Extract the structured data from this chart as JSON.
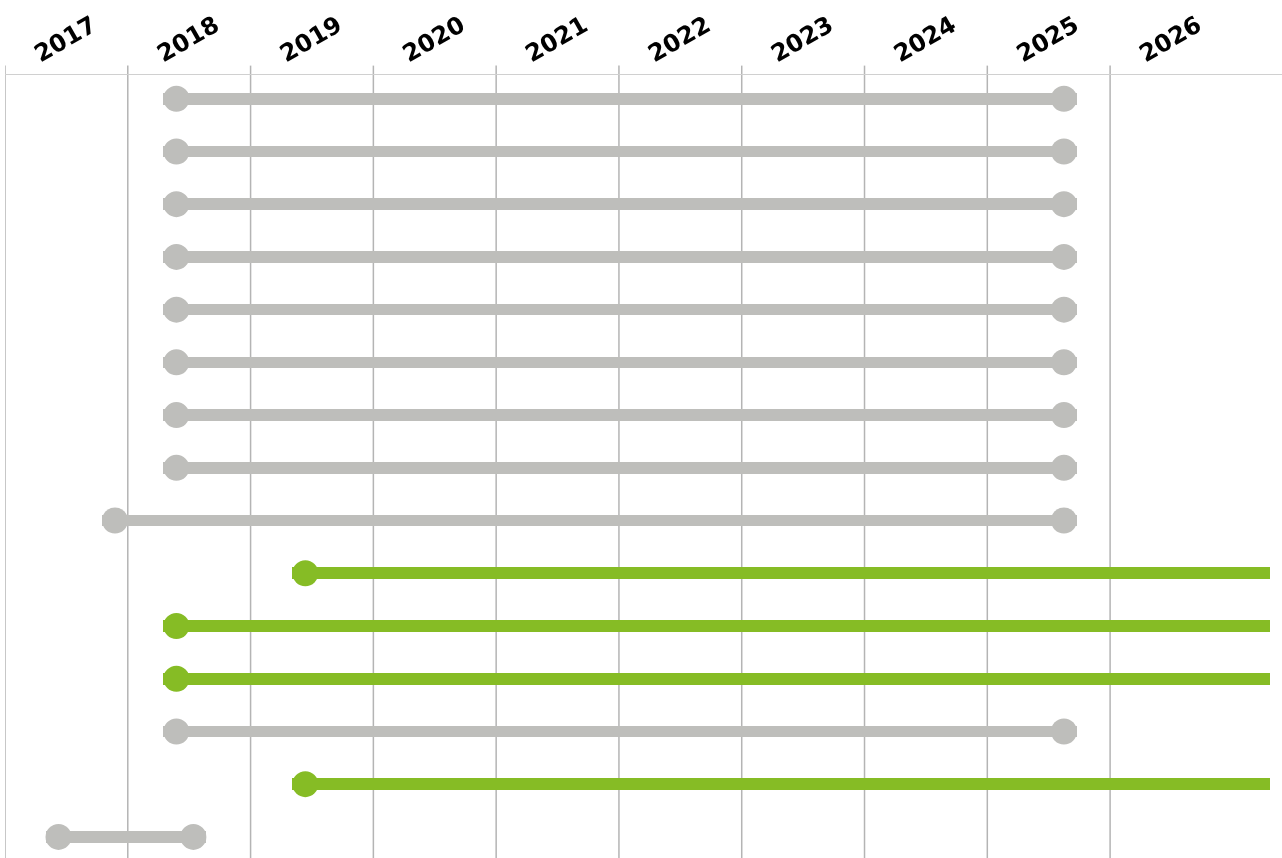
{
  "chart_data": {
    "type": "bar",
    "orientation": "horizontal",
    "categories": [
      null,
      null,
      null,
      null,
      null,
      null,
      null,
      null,
      null,
      null,
      null,
      null,
      null,
      null,
      null
    ],
    "base": [
      2018.29,
      2018.29,
      2018.29,
      2018.29,
      2018.29,
      2018.29,
      2018.29,
      2018.29,
      2017.79,
      2019.34,
      2018.29,
      2018.29,
      2018.29,
      2019.34,
      2017.33
    ],
    "values": [
      7.44,
      7.44,
      7.44,
      7.44,
      7.44,
      7.44,
      7.44,
      7.44,
      7.94,
      7.96,
      9.01,
      9.01,
      7.44,
      7.96,
      1.31
    ],
    "colors": [
      "#bebebb",
      "#bebebb",
      "#bebebb",
      "#bebebb",
      "#bebebb",
      "#bebebb",
      "#bebebb",
      "#bebebb",
      "#bebebb",
      "#86bc25",
      "#86bc25",
      "#86bc25",
      "#bebebb",
      "#86bc25",
      "#bebebb"
    ],
    "xlim": [
      2017,
      2027.4
    ],
    "xticks": [
      {
        "value": 2017,
        "label": null
      },
      {
        "value": 2018,
        "label": null
      },
      {
        "value": 2019,
        "label": null
      },
      {
        "value": 2020,
        "label": null
      },
      {
        "value": 2021,
        "label": null
      },
      {
        "value": 2022,
        "label": null
      },
      {
        "value": 2023,
        "label": null
      },
      {
        "value": 2024,
        "label": null
      },
      {
        "value": 2025,
        "label": null
      },
      {
        "value": 2026,
        "label": null
      },
      {
        "value": 2017.5,
        "label": "2017"
      },
      {
        "value": 2018.5,
        "label": "2018"
      },
      {
        "value": 2019.5,
        "label": "2019"
      },
      {
        "value": 2020.5,
        "label": "2020"
      },
      {
        "value": 2021.5,
        "label": "2021"
      },
      {
        "value": 2022.5,
        "label": "2022"
      },
      {
        "value": 2023.5,
        "label": "2023"
      },
      {
        "value": 2024.5,
        "label": "2024"
      },
      {
        "value": 2025.5,
        "label": "2025"
      },
      {
        "value": 2026.5,
        "label": "2026"
      }
    ],
    "grid": "x",
    "marker": "circle"
  }
}
